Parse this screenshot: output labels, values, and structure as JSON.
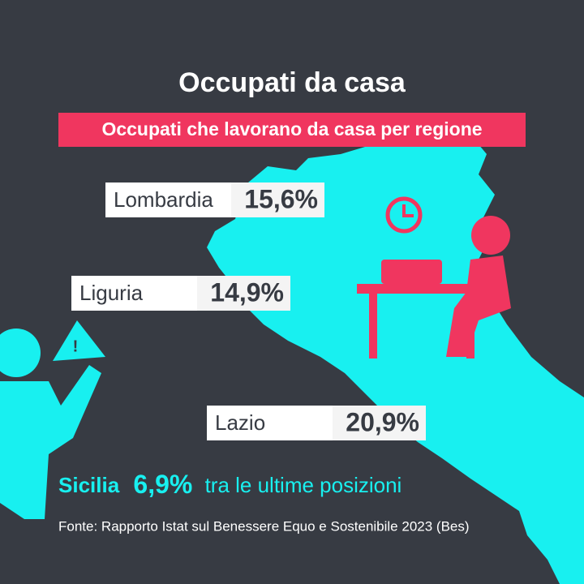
{
  "header": {
    "title": "Occupati da casa",
    "subtitle": "Occupati che lavorano da casa per regione"
  },
  "regions": [
    {
      "name": "Lombardia",
      "value": "15,6%"
    },
    {
      "name": "Liguria",
      "value": "14,9%"
    },
    {
      "name": "Lazio",
      "value": "20,9%"
    }
  ],
  "highlight": {
    "name": "Sicilia",
    "value": "6,9%",
    "text": "tra le ultime posizioni"
  },
  "source": "Fonte: Rapporto Istat sul Benessere Equo e Sostenibile 2023 (Bes)"
}
